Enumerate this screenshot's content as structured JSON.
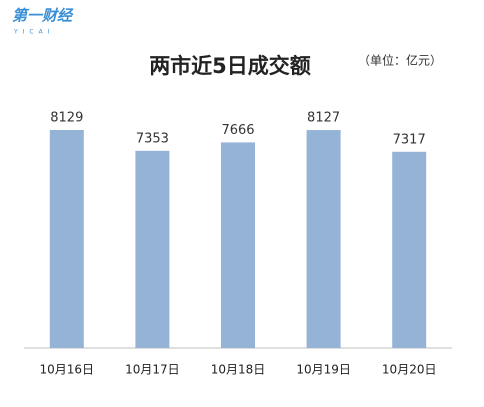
{
  "logo": {
    "text": "第一财经",
    "subtext": "YICAI"
  },
  "chart_data": {
    "type": "bar",
    "title": "两市近5日成交额",
    "subtitle": "（单位：亿元）",
    "categories": [
      "10月16日",
      "10月17日",
      "10月18日",
      "10月19日",
      "10月20日"
    ],
    "values": [
      8129,
      7353,
      7666,
      8127,
      7317
    ],
    "color": "#95b3d7"
  }
}
